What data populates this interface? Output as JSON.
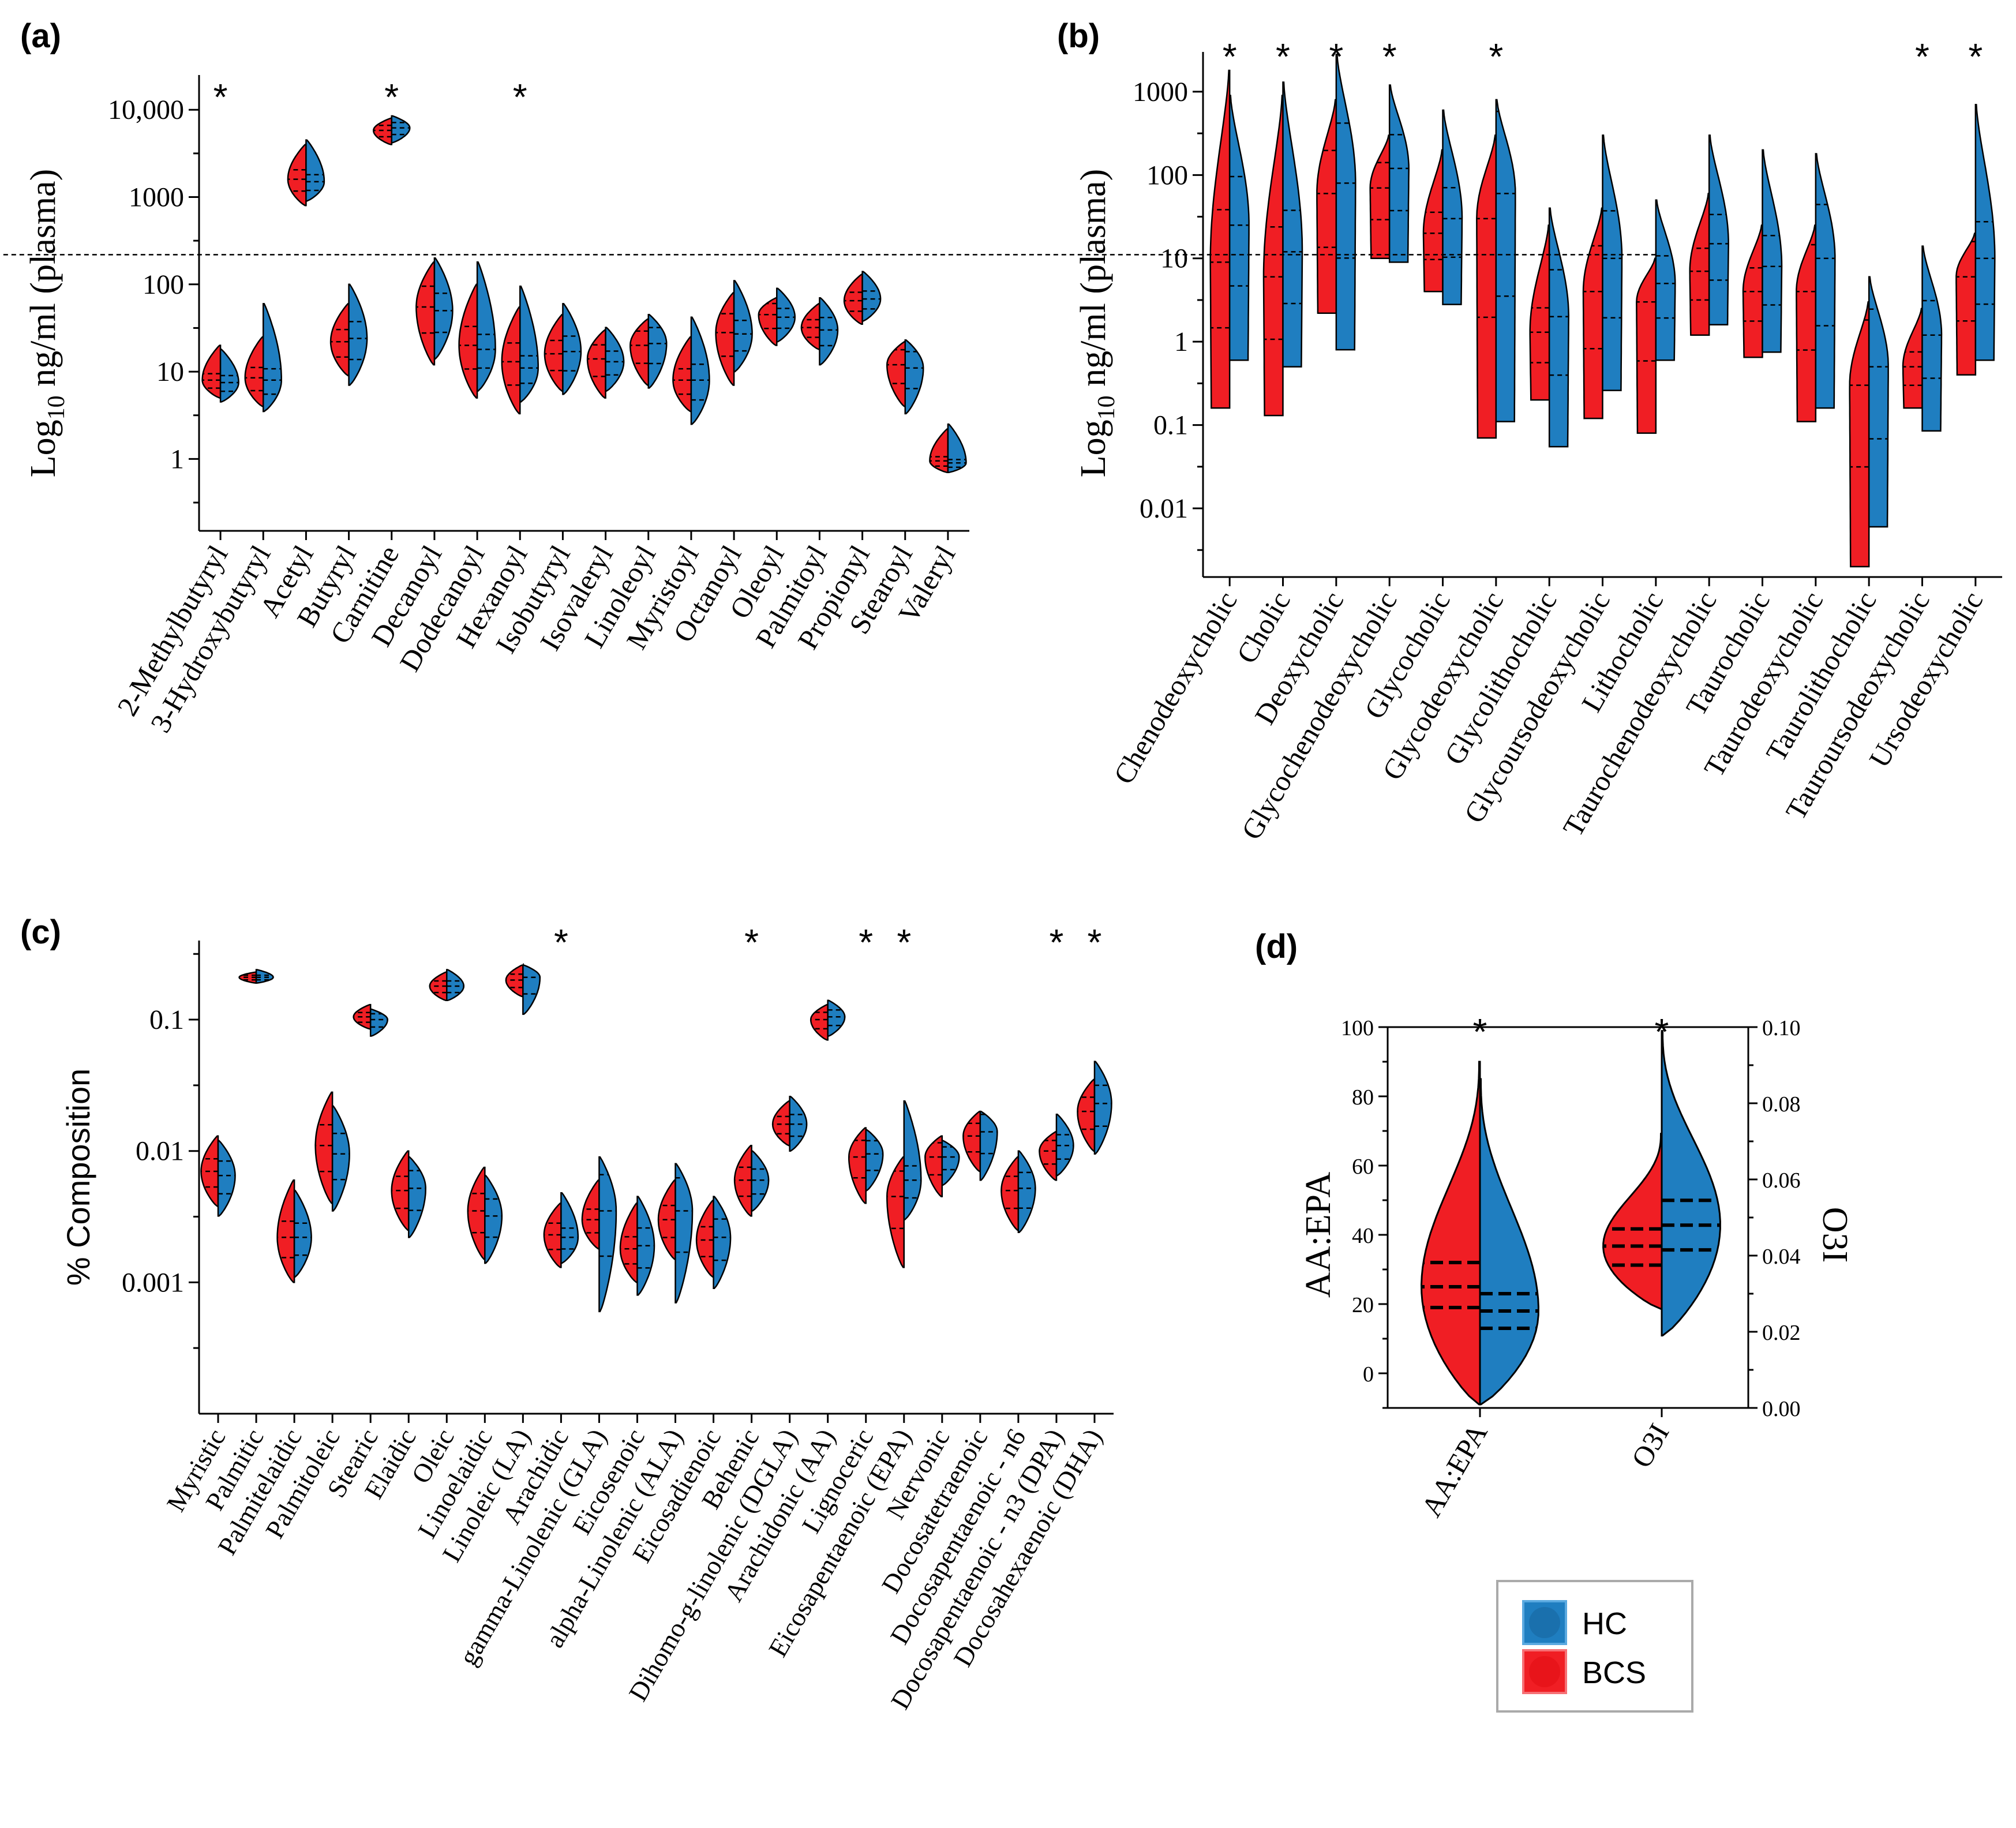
{
  "colors": {
    "HC": "#1f7ec0",
    "BCS": "#f01e24"
  },
  "legend": {
    "hc_label": "HC",
    "bcs_label": "BCS"
  },
  "chart_data": [
    {
      "panel": "(a)",
      "type": "violin",
      "ylabel_main": "Log",
      "ylabel_sub": "10",
      "ylabel_rest": " ng/ml (plasma)",
      "yscale": "log",
      "ylim": [
        0.15,
        25000
      ],
      "yticks": [
        1,
        10,
        100,
        1000,
        10000
      ],
      "yticklabels": [
        "1",
        "10",
        "100",
        "1000",
        "10,000"
      ],
      "categories": [
        "2-Methylbutyryl",
        "3-Hydroxybutyryl",
        "Acetyl",
        "Butyryl",
        "Carnitine",
        "Decanoyl",
        "Dodecanoyl",
        "Hexanoyl",
        "Isobutyryl",
        "Isovaleryl",
        "Linoleoyl",
        "Myristoyl",
        "Octanoyl",
        "Oleoyl",
        "Palmitoyl",
        "Propionyl",
        "Stearoyl",
        "Valeryl"
      ],
      "significant": [
        "*",
        "",
        "",
        "",
        "*",
        "",
        "",
        "*",
        "",
        "",
        "",
        "",
        "",
        "",
        "",
        "",
        "",
        ""
      ],
      "series": [
        {
          "name": "BCS",
          "min": [
            5,
            4,
            800,
            9,
            4000,
            12,
            5,
            3.3,
            6,
            5,
            7,
            3.5,
            7,
            20,
            18,
            35,
            4,
            0.7
          ],
          "max": [
            20,
            25,
            4000,
            60,
            8000,
            180,
            100,
            55,
            45,
            30,
            40,
            25,
            80,
            70,
            60,
            130,
            22,
            2.2
          ],
          "median": [
            8,
            8.5,
            1600,
            22,
            5800,
            55,
            20,
            13,
            16,
            14,
            20,
            8,
            28,
            45,
            32,
            65,
            12,
            0.95
          ]
        },
        {
          "name": "HC",
          "min": [
            4.5,
            3.5,
            900,
            7,
            4200,
            14,
            6,
            4.5,
            5.5,
            6,
            6.5,
            2.5,
            10,
            22,
            12,
            38,
            3.3,
            0.7
          ],
          "max": [
            18,
            60,
            4500,
            100,
            8500,
            200,
            180,
            95,
            60,
            32,
            45,
            42,
            110,
            90,
            70,
            140,
            23,
            2.5
          ],
          "median": [
            7.5,
            8,
            1500,
            24,
            6200,
            50,
            18,
            11,
            17,
            13,
            21,
            8,
            27,
            42,
            30,
            68,
            11,
            0.9
          ]
        }
      ]
    },
    {
      "panel": "(b)",
      "type": "violin",
      "ylabel_main": "Log",
      "ylabel_sub": "10",
      "ylabel_rest": " ng/ml (plasma)",
      "yscale": "log",
      "ylim": [
        0.0015,
        3000
      ],
      "yticks": [
        0.01,
        0.1,
        1,
        10,
        100,
        1000
      ],
      "yticklabels": [
        "0.01",
        "0.1",
        "1",
        "10",
        "100",
        "1000"
      ],
      "categories": [
        "Chenodeoxycholic",
        "Cholic",
        "Deoxycholic",
        "Glycochenodeoxycholic",
        "Glycocholic",
        "Glycodeoxycholic",
        "Glycolithocholic",
        "Glycoursodeoxycholic",
        "Lithocholic",
        "Taurochenodeoxycholic",
        "Taurocholic",
        "Taurodeoxycholic",
        "Taurolithocholic",
        "Tauroursodeoxycholic",
        "Ursodeoxycholic"
      ],
      "significant": [
        "*",
        "*",
        "*",
        "*",
        "",
        "*",
        "",
        "",
        "",
        "",
        "",
        "",
        "",
        "*",
        "*"
      ],
      "series": [
        {
          "name": "BCS",
          "min": [
            0.16,
            0.13,
            2.2,
            10,
            4,
            0.07,
            0.2,
            0.12,
            0.08,
            1.2,
            0.65,
            0.11,
            0.002,
            0.16,
            0.4
          ],
          "max": [
            1800,
            900,
            800,
            300,
            200,
            300,
            25,
            40,
            10,
            60,
            25,
            25,
            3,
            2.5,
            20
          ],
          "median": [
            9,
            6,
            60,
            70,
            20,
            30,
            1.3,
            4,
            3,
            7,
            4,
            4,
            0.3,
            0.5,
            6
          ]
        },
        {
          "name": "HC",
          "min": [
            0.6,
            0.5,
            0.8,
            9,
            2.8,
            0.11,
            0.055,
            0.26,
            0.6,
            1.6,
            0.75,
            0.16,
            0.006,
            0.085,
            0.6
          ],
          "max": [
            900,
            1300,
            2800,
            1200,
            600,
            800,
            40,
            300,
            50,
            300,
            200,
            180,
            6,
            14,
            700
          ],
          "median": [
            25,
            12,
            80,
            120,
            30,
            60,
            2,
            10,
            5,
            15,
            8,
            10,
            0.5,
            1.2,
            10
          ]
        }
      ]
    },
    {
      "panel": "(c)",
      "type": "violin",
      "ylabel": "% Composition",
      "yscale": "log",
      "ylim": [
        0.0001,
        0.4
      ],
      "yticks": [
        0.001,
        0.01,
        0.1
      ],
      "yticklabels": [
        "0.001",
        "0.01",
        "0.1"
      ],
      "categories": [
        "Myristic",
        "Palmitic",
        "Palmitelaidic",
        "Palmitoleic",
        "Stearic",
        "Elaidic",
        "Oleic",
        "Linoelaidic",
        "Linoleic (LA)",
        "Arachidic",
        "gamma-Linolenic (GLA)",
        "Eicosenoic",
        "alpha-Linolenic (ALA)",
        "Eicosadienoic",
        "Behenic",
        "Dihomo-g-linolenic (DGLA)",
        "Arachidonic (AA)",
        "Lignoceric",
        "Eicosapentaenoic (EPA)",
        "Nervonic",
        "Docosatetraenoic",
        "Docosapentaenoic - n6",
        "Docosapentaenoic - n3 (DPA)",
        "Docosahexaenoic (DHA)"
      ],
      "significant": [
        "",
        "",
        "",
        "",
        "",
        "",
        "",
        "",
        "",
        "*",
        "",
        "",
        "",
        "",
        "*",
        "",
        "",
        "*",
        "*",
        "",
        "",
        "",
        "*",
        "*"
      ],
      "series": [
        {
          "name": "BCS",
          "min": [
            0.0038,
            0.19,
            0.001,
            0.004,
            0.085,
            0.0025,
            0.14,
            0.0015,
            0.15,
            0.0013,
            0.0018,
            0.001,
            0.0015,
            0.0011,
            0.0032,
            0.011,
            0.07,
            0.004,
            0.0013,
            0.0045,
            0.007,
            0.0025,
            0.006,
            0.01
          ],
          "max": [
            0.013,
            0.23,
            0.006,
            0.028,
            0.13,
            0.01,
            0.23,
            0.0075,
            0.26,
            0.004,
            0.006,
            0.004,
            0.006,
            0.0042,
            0.011,
            0.024,
            0.13,
            0.015,
            0.009,
            0.013,
            0.02,
            0.009,
            0.014,
            0.035
          ],
          "median": [
            0.007,
            0.21,
            0.0022,
            0.011,
            0.105,
            0.005,
            0.18,
            0.0035,
            0.2,
            0.0023,
            0.003,
            0.0018,
            0.003,
            0.0021,
            0.006,
            0.016,
            0.1,
            0.009,
            0.0045,
            0.009,
            0.013,
            0.005,
            0.01,
            0.02
          ]
        },
        {
          "name": "HC",
          "min": [
            0.0032,
            0.19,
            0.0011,
            0.0035,
            0.075,
            0.0022,
            0.14,
            0.0014,
            0.11,
            0.0014,
            0.0006,
            0.0008,
            0.0007,
            0.0009,
            0.0035,
            0.01,
            0.075,
            0.005,
            0.003,
            0.0055,
            0.006,
            0.0024,
            0.0065,
            0.0095
          ],
          "max": [
            0.012,
            0.24,
            0.005,
            0.022,
            0.12,
            0.009,
            0.24,
            0.0065,
            0.26,
            0.0048,
            0.009,
            0.0045,
            0.008,
            0.0045,
            0.01,
            0.026,
            0.14,
            0.0145,
            0.024,
            0.012,
            0.02,
            0.01,
            0.019,
            0.048
          ],
          "median": [
            0.0065,
            0.21,
            0.0022,
            0.0095,
            0.1,
            0.0052,
            0.18,
            0.0032,
            0.21,
            0.0022,
            0.0035,
            0.0019,
            0.0035,
            0.0022,
            0.006,
            0.016,
            0.105,
            0.0095,
            0.006,
            0.009,
            0.014,
            0.0052,
            0.011,
            0.023
          ]
        }
      ]
    },
    {
      "panel": "(d)",
      "type": "violin",
      "ylabel_left": "AA:EPA",
      "ylabel_right": "O3I",
      "ylim_left": [
        -10,
        100
      ],
      "ylim_right": [
        0.0,
        0.1
      ],
      "yticks_left": [
        "0",
        "20",
        "40",
        "60",
        "80",
        "100"
      ],
      "yticks_right": [
        "0.00",
        "0.02",
        "0.04",
        "0.06",
        "0.08",
        "0.10"
      ],
      "categories": [
        "AA:EPA",
        "O3I"
      ],
      "significant": [
        "*",
        "*"
      ],
      "series": [
        {
          "name": "BCS",
          "AA:EPA": {
            "min": -9,
            "q1": 19,
            "median": 25,
            "q3": 32,
            "max": 90
          },
          "O3I": {
            "min": 0.026,
            "q1": 0.0375,
            "median": 0.0425,
            "q3": 0.047,
            "max": 0.072
          }
        },
        {
          "name": "HC",
          "AA:EPA": {
            "min": -9,
            "q1": 13,
            "median": 18,
            "q3": 23,
            "max": 85
          },
          "O3I": {
            "min": 0.019,
            "q1": 0.0415,
            "median": 0.048,
            "q3": 0.0545,
            "max": 0.099
          }
        }
      ]
    }
  ]
}
